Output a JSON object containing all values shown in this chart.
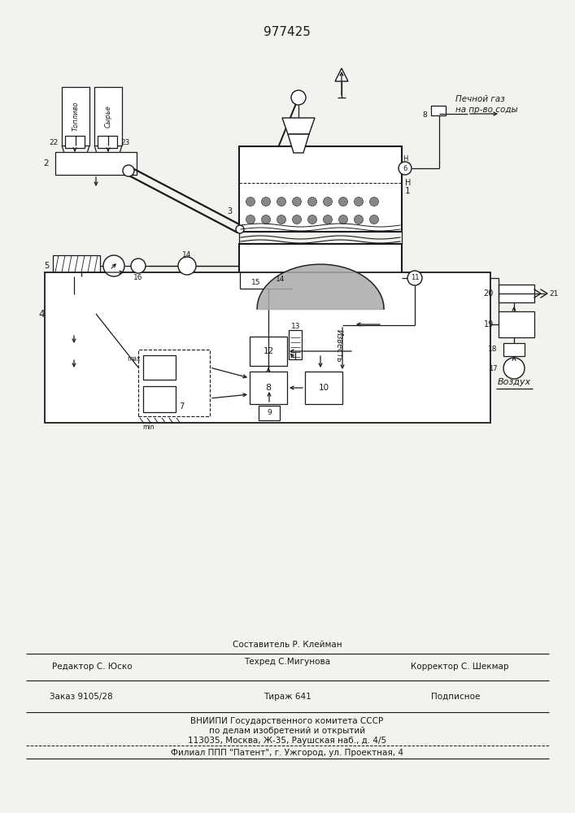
{
  "patent_number": "977425",
  "bg_color": "#f2f2ee",
  "line_color": "#1a1a1a",
  "labels": {
    "fuel": "Топливо",
    "raw": "Сырье",
    "gas1": "Печной газ",
    "gas2": "на пр-во соды",
    "air": "Воздух",
    "lime": "Известь"
  },
  "footer": {
    "l1c": "Составитель Р. Клейман",
    "l2l": "Редактор С. Юско",
    "l2c": "Техред С.Мигунова",
    "l2r": "Корректор С. Шекмар",
    "l3l": "Заказ 9105/28",
    "l3c": "Тираж 641",
    "l3r": "Подписное",
    "l4": "ВНИИПИ Государственного комитета СССР",
    "l5": "по делам изобретений и открытий",
    "l6": "113035, Москва, Ж-35, Раушская наб., д. 4/5",
    "l7": "Филиал ППП \"Патент\", г. Ужгород, ул. Проектная, 4"
  }
}
